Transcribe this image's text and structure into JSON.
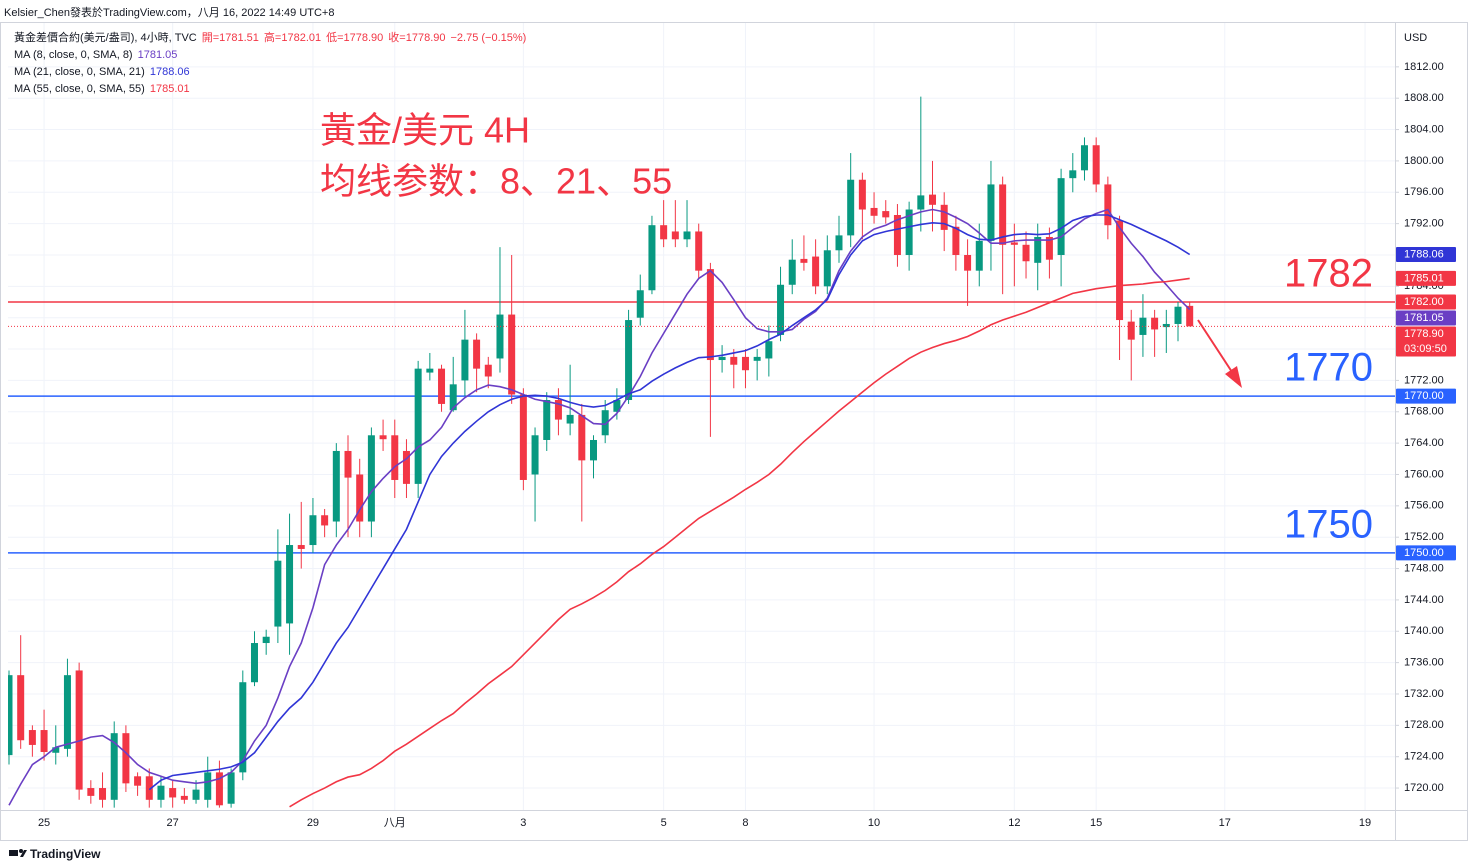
{
  "topbar": "Kelsier_Chen發表於TradingView.com，八月 16, 2022 14:49 UTC+8",
  "footer": "TradingView",
  "chart_data": {
    "type": "candlestick",
    "axis_unit": "USD",
    "annotations": [
      "黃金/美元 4H",
      "均线参数：8、21、55"
    ],
    "annotation_color": "#f23645",
    "grid": true,
    "ylim": [
      1717.2,
      1816.7
    ],
    "yticks": [
      {
        "value": 1720,
        "label": "1720.00"
      },
      {
        "value": 1724,
        "label": "1724.00"
      },
      {
        "value": 1728,
        "label": "1728.00"
      },
      {
        "value": 1732,
        "label": "1732.00"
      },
      {
        "value": 1736,
        "label": "1736.00"
      },
      {
        "value": 1740,
        "label": "1740.00"
      },
      {
        "value": 1744,
        "label": "1744.00"
      },
      {
        "value": 1748,
        "label": "1748.00"
      },
      {
        "value": 1752,
        "label": "1752.00"
      },
      {
        "value": 1756,
        "label": "1756.00"
      },
      {
        "value": 1760,
        "label": "1760.00"
      },
      {
        "value": 1764,
        "label": "1764.00"
      },
      {
        "value": 1768,
        "label": "1768.00"
      },
      {
        "value": 1772,
        "label": "1772.00"
      },
      {
        "value": 1776,
        "label": "1776.00"
      },
      {
        "value": 1780,
        "label": "1780.00"
      },
      {
        "value": 1784,
        "label": "1784.00"
      },
      {
        "value": 1788,
        "label": "1788.00"
      },
      {
        "value": 1792,
        "label": "1792.00"
      },
      {
        "value": 1796,
        "label": "1796.00"
      },
      {
        "value": 1800,
        "label": "1800.00"
      },
      {
        "value": 1804,
        "label": "1804.00"
      },
      {
        "value": 1808,
        "label": "1808.00"
      },
      {
        "value": 1812,
        "label": "1812.00"
      }
    ],
    "categories": [
      null,
      null,
      null,
      "25",
      null,
      null,
      null,
      null,
      null,
      null,
      null,
      null,
      null,
      null,
      "27",
      null,
      null,
      null,
      null,
      null,
      null,
      null,
      null,
      null,
      null,
      null,
      "29",
      null,
      null,
      null,
      null,
      null,
      null,
      "八月",
      null,
      null,
      null,
      null,
      null,
      null,
      null,
      null,
      null,
      null,
      "3",
      null,
      null,
      null,
      null,
      null,
      null,
      null,
      null,
      null,
      null,
      null,
      "5",
      null,
      null,
      null,
      null,
      null,
      null,
      "8",
      null,
      null,
      null,
      null,
      null,
      null,
      null,
      null,
      null,
      null,
      "10",
      null,
      null,
      null,
      null,
      null,
      null,
      null,
      null,
      null,
      null,
      null,
      "12",
      null,
      null,
      null,
      null,
      null,
      null,
      "15",
      null,
      null,
      null,
      null,
      null,
      null,
      null,
      null,
      null,
      null,
      "17",
      null,
      null,
      null,
      null,
      null,
      null,
      null,
      null,
      null,
      null,
      null,
      "19",
      null,
      null
    ],
    "levels": [
      {
        "value": 1782,
        "label": "1782",
        "tag": "1782.00",
        "color": "#f23645"
      },
      {
        "value": 1770,
        "label": "1770",
        "tag": "1770.00",
        "color": "#2962ff"
      },
      {
        "value": 1750,
        "label": "1750",
        "tag": "1750.00",
        "color": "#2962ff"
      }
    ],
    "series": [
      {
        "name": "黃金差價合約(美元/盎司), 4小時, TVC",
        "ohlc": [
          "開=1781.51",
          "高=1782.01",
          "低=1778.90",
          "收=1778.90",
          "−2.75 (−0.15%)"
        ],
        "up_color": "#089981",
        "down_color": "#f23645",
        "last_label": "1778.90",
        "countdown": "03:09:50",
        "open": [
          1724.2,
          1734.4,
          1727.4,
          1727.4,
          1724.5,
          1725,
          1735,
          1720,
          1720,
          1718.5,
          1727,
          1721.5,
          1721.5,
          1718.5,
          1720,
          1719,
          1718.5,
          1718.5,
          1722,
          1718,
          1722,
          1733.5,
          1738.5,
          1740.6,
          1741,
          1751,
          1751,
          1754.8,
          1754,
          1763,
          1760,
          1754,
          1765,
          1765,
          1763,
          1758.8,
          1773,
          1773.5,
          1768.2,
          1772,
          1777.2,
          1774,
          1774.8,
          1780.4,
          1770.2,
          1760,
          1764.4,
          1769.5,
          1766.5,
          1767.6,
          1761.8,
          1765,
          1768,
          1769.5,
          1780,
          1783.5,
          1791.8,
          1791,
          1790,
          1791,
          1786.2,
          1774.6,
          1775,
          1775,
          1774.5,
          1774.8,
          1777.8,
          1784.2,
          1787.5,
          1787.8,
          1784,
          1788.6,
          1790.5,
          1797.6,
          1794,
          1793.6,
          1793.1,
          1788,
          1793.8,
          1795.7,
          1794.4,
          1791.6,
          1788,
          1786,
          1789.8,
          1797,
          1789.6,
          1789.3,
          1787,
          1790.3,
          1788,
          1797.8,
          1798.8,
          1802,
          1797,
          1792.4,
          1779.5,
          1777.8,
          1780,
          1778.8,
          1779.2,
          1781.51,
          null,
          null,
          null,
          null,
          null,
          null,
          null,
          null,
          null,
          null,
          null,
          null,
          null,
          null,
          null,
          null,
          null
        ],
        "high": [
          1735,
          1739.5,
          1728,
          1730,
          1728,
          1736.5,
          1736,
          1721,
          1722,
          1728.5,
          1728,
          1722,
          1722.5,
          1721.5,
          1721,
          1720,
          1721,
          1724,
          1723.5,
          1722.5,
          1735,
          1740,
          1740.2,
          1753,
          1755,
          1756.5,
          1757,
          1755.6,
          1764,
          1765,
          1762,
          1766,
          1767,
          1767,
          1764.5,
          1774.5,
          1775.5,
          1774,
          1775,
          1781,
          1778,
          1775,
          1789,
          1788,
          1771,
          1766,
          1770.5,
          1771,
          1774,
          1769,
          1765,
          1769.5,
          1771,
          1781,
          1785.5,
          1793,
          1795,
          1795,
          1795,
          1792,
          1787,
          1776.5,
          1776,
          1776,
          1776,
          1779,
          1786.5,
          1790,
          1790.5,
          1790,
          1790.5,
          1793,
          1801,
          1798.5,
          1796,
          1795,
          1794.5,
          1794.8,
          1808.2,
          1800,
          1796,
          1793,
          1790,
          1792,
          1800,
          1798,
          1792,
          1791,
          1792,
          1791.5,
          1799,
          1801,
          1803,
          1803,
          1798,
          1793,
          1781,
          1783,
          1781,
          1781,
          1782,
          1782.01,
          null,
          null,
          null,
          null,
          null,
          null,
          null,
          null,
          null,
          null,
          null,
          null,
          null,
          null,
          null,
          null,
          null
        ],
        "low": [
          1723,
          1725,
          1724,
          1723.5,
          1723,
          1724,
          1718.5,
          1718,
          1717.5,
          1717.5,
          1719.5,
          1719,
          1717.5,
          1717.5,
          1717.5,
          1718,
          1718,
          1717.5,
          1717.5,
          1717.5,
          1721,
          1733,
          1737,
          1738.5,
          1737,
          1748,
          1750,
          1752,
          1752,
          1752,
          1752,
          1752,
          1763,
          1757,
          1757,
          1757,
          1772,
          1768,
          1768,
          1770,
          1770.5,
          1771,
          1773,
          1769,
          1758,
          1754,
          1763,
          1765,
          1765,
          1754,
          1759.5,
          1764,
          1767,
          1769,
          1779,
          1783,
          1789,
          1789,
          1789,
          1785,
          1764.8,
          1773,
          1771,
          1771,
          1772,
          1772.5,
          1777,
          1783,
          1786,
          1783,
          1783,
          1787,
          1789,
          1790,
          1792,
          1792,
          1786.5,
          1786,
          1791,
          1791,
          1788.5,
          1786,
          1781.5,
          1784,
          1786,
          1783,
          1784,
          1785,
          1783.5,
          1785,
          1784,
          1796,
          1797.5,
          1796,
          1790,
          1774.6,
          1772,
          1775,
          1775,
          1775.5,
          1777,
          1778.9,
          null,
          null,
          null,
          null,
          null,
          null,
          null,
          null,
          null,
          null,
          null,
          null,
          null,
          null,
          null,
          null,
          null
        ],
        "close": [
          1734.4,
          1726.1,
          1725.5,
          1724.6,
          1725.2,
          1734.4,
          1719.8,
          1719,
          1718.5,
          1727,
          1720.6,
          1720.3,
          1718.5,
          1720.3,
          1718.8,
          1718.5,
          1719.8,
          1722,
          1717.8,
          1722,
          1733.5,
          1738.5,
          1739.3,
          1749,
          1751,
          1750.5,
          1754.8,
          1753.5,
          1763,
          1759.6,
          1754,
          1765,
          1764.5,
          1759.3,
          1758.8,
          1773.5,
          1773.5,
          1769,
          1771.5,
          1777.2,
          1773.5,
          1772.5,
          1780.4,
          1770.2,
          1759.3,
          1765,
          1769.5,
          1767,
          1767.6,
          1761.8,
          1764.4,
          1768.2,
          1769.5,
          1779.7,
          1783.5,
          1791.8,
          1790,
          1790,
          1791,
          1786,
          1774.6,
          1775,
          1774,
          1773.3,
          1775,
          1777,
          1784.2,
          1787.4,
          1787,
          1784,
          1788.6,
          1790.5,
          1797.6,
          1793.8,
          1793,
          1792.8,
          1788,
          1793.8,
          1795.6,
          1794.4,
          1791.2,
          1788,
          1786,
          1789.8,
          1797,
          1789.3,
          1789.3,
          1787.2,
          1790.3,
          1787.4,
          1797.8,
          1798.8,
          1802,
          1797,
          1791.8,
          1779.7,
          1777.2,
          1780,
          1778.5,
          1779.2,
          1781.4,
          1778.9,
          null,
          null,
          null,
          null,
          null,
          null,
          null,
          null,
          null,
          null,
          null,
          null,
          null,
          null,
          null,
          null,
          null
        ]
      },
      {
        "name": "MA (8, close, 0, SMA, 8)",
        "color": "#6a3fc4",
        "last_label": "1781.05",
        "values": [
          1717.8,
          1720.5,
          1723,
          1724,
          1725.2,
          1725.6,
          1726,
          1726.5,
          1726.7,
          1725.8,
          1724.5,
          1723,
          1722,
          1721.5,
          1721,
          1720.8,
          1720.6,
          1720.8,
          1721.2,
          1722,
          1723.5,
          1726,
          1728,
          1731.5,
          1735.5,
          1738.5,
          1743,
          1748.5,
          1751,
          1753,
          1755.5,
          1757.8,
          1759.5,
          1761,
          1762,
          1763.5,
          1764.4,
          1766,
          1768.5,
          1769.8,
          1770.8,
          1771.4,
          1771.2,
          1770.8,
          1770.2,
          1769.6,
          1769.3,
          1769,
          1768.5,
          1767.5,
          1766.5,
          1766.4,
          1767.8,
          1770,
          1772.5,
          1775.5,
          1778,
          1780.5,
          1783,
          1785,
          1786,
          1784.5,
          1782.3,
          1780,
          1778.6,
          1778.2,
          1778.2,
          1778.5,
          1779.8,
          1780.8,
          1782.5,
          1786,
          1788.5,
          1790.3,
          1791.3,
          1791.8,
          1792.5,
          1793,
          1793.5,
          1793.8,
          1793.5,
          1792.8,
          1792,
          1790.8,
          1789.5,
          1789.5,
          1789.8,
          1789.9,
          1789.9,
          1789.9,
          1790.3,
          1791.5,
          1792.6,
          1793.3,
          1793.8,
          1791.5,
          1789.5,
          1787.8,
          1785.8,
          1784.2,
          1782.5,
          1781.05,
          null,
          null,
          null,
          null,
          null,
          null,
          null,
          null,
          null,
          null,
          null,
          null,
          null,
          null,
          null,
          null,
          null
        ]
      },
      {
        "name": "MA (21, close, 0, SMA, 21)",
        "color": "#3035d6",
        "last_label": "1788.06",
        "values": [
          null,
          null,
          null,
          null,
          null,
          null,
          null,
          null,
          null,
          null,
          null,
          null,
          1719.8,
          1721,
          1721.6,
          1721.8,
          1722,
          1722.2,
          1722.4,
          1722.7,
          1723.3,
          1724.5,
          1726.5,
          1728.5,
          1730.2,
          1731.5,
          1733.5,
          1736,
          1738.5,
          1740.5,
          1743,
          1745.5,
          1748,
          1750.5,
          1753,
          1756.5,
          1760,
          1762.3,
          1764,
          1765.5,
          1766.8,
          1768,
          1768.9,
          1769.6,
          1770,
          1770.1,
          1770,
          1769.7,
          1769.2,
          1768.8,
          1768.6,
          1768.8,
          1769.5,
          1770.3,
          1770.8,
          1771.9,
          1772.8,
          1773.6,
          1774.3,
          1774.9,
          1775,
          1775.2,
          1775.5,
          1775.8,
          1776.4,
          1777.2,
          1777.9,
          1779,
          1780,
          1781,
          1782.3,
          1785.5,
          1788,
          1789.8,
          1790.6,
          1791,
          1791.3,
          1791.6,
          1791.9,
          1792.1,
          1792,
          1791.4,
          1790.6,
          1790,
          1789.9,
          1790.3,
          1790.6,
          1790.7,
          1790.6,
          1790.7,
          1791.4,
          1792.4,
          1792.9,
          1793.1,
          1793.1,
          1792.5,
          1791.9,
          1791.2,
          1790.5,
          1789.8,
          1789,
          1788.06,
          null,
          null,
          null,
          null,
          null,
          null,
          null,
          null,
          null,
          null,
          null,
          null,
          null,
          null,
          null,
          null,
          null
        ]
      },
      {
        "name": "MA (55, close, 0, SMA, 55)",
        "color": "#f23645",
        "last_label": "1785.01",
        "values": [
          null,
          null,
          null,
          null,
          null,
          null,
          null,
          null,
          null,
          null,
          null,
          null,
          null,
          null,
          null,
          null,
          null,
          null,
          null,
          null,
          null,
          null,
          null,
          null,
          1717.6,
          1718.5,
          1719.3,
          1720,
          1720.8,
          1721.4,
          1721.7,
          1722.5,
          1723.5,
          1724.7,
          1725.6,
          1726.6,
          1727.6,
          1728.6,
          1729.5,
          1730.8,
          1732,
          1733.3,
          1734.4,
          1735.5,
          1737,
          1738.5,
          1740,
          1741.5,
          1742.8,
          1743.5,
          1744.3,
          1745.2,
          1746.3,
          1747.6,
          1748.6,
          1749.8,
          1750.8,
          1752,
          1753.2,
          1754.4,
          1755.3,
          1756.2,
          1757.1,
          1758.1,
          1759,
          1760,
          1761.3,
          1762.8,
          1764.2,
          1765.5,
          1766.8,
          1768.1,
          1769.3,
          1770.5,
          1771.7,
          1772.8,
          1773.8,
          1774.8,
          1775.6,
          1776.2,
          1776.7,
          1777.1,
          1777.6,
          1778.3,
          1779.1,
          1779.7,
          1780.2,
          1780.7,
          1781.3,
          1781.9,
          1782.5,
          1783.1,
          1783.4,
          1783.7,
          1783.9,
          1784.1,
          1784.2,
          1784.3,
          1784.5,
          1784.6,
          1784.8,
          1785.01,
          null,
          null,
          null,
          null,
          null,
          null,
          null,
          null,
          null,
          null,
          null,
          null,
          null,
          null,
          null,
          null,
          null
        ]
      }
    ]
  }
}
